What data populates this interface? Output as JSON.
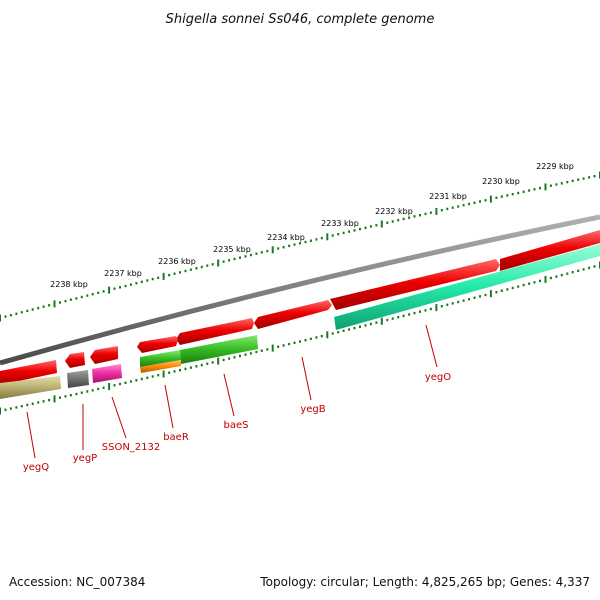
{
  "title": "Shigella sonnei Ss046, complete genome",
  "footer": {
    "accession": "Accession: NC_007384",
    "topology": "Topology: circular; Length: 4,825,265 bp; Genes: 4,337"
  },
  "scale_labels": [
    "2229 kbp",
    "2230 kbp",
    "2231 kbp",
    "2232 kbp",
    "2233 kbp",
    "2234 kbp",
    "2235 kbp",
    "2236 kbp",
    "2237 kbp",
    "2238 kbp"
  ],
  "genes": [
    "yegQ",
    "yegP",
    "SSON_2132",
    "baeR",
    "baeS",
    "yegB",
    "yegO"
  ],
  "colors": {
    "backbone": "#808080",
    "forward_cds": "#ee0000",
    "scale_ticks": "#1a7a1a",
    "label": "#c00000",
    "yegO_track": "#22e8a8",
    "baeS_track": "#33bb22",
    "baeR_track": "#ff8800",
    "SSON_2132_track": "#ee2aa0",
    "yegP_track": "#777777",
    "yegQ_track": "#b8b070"
  }
}
